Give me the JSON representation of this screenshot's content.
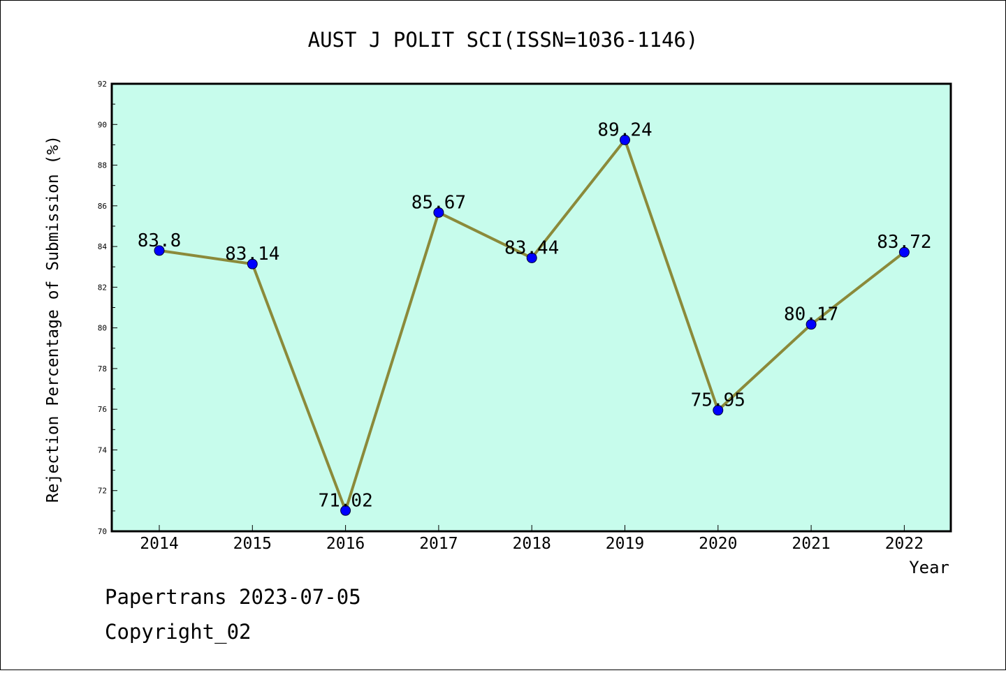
{
  "chart_data": {
    "type": "line",
    "title": "AUST J POLIT SCI(ISSN=1036-1146)",
    "xlabel": "Year",
    "ylabel": "Rejection Percentage of Submission (%)",
    "categories": [
      "2014",
      "2015",
      "2016",
      "2017",
      "2018",
      "2019",
      "2020",
      "2021",
      "2022"
    ],
    "values": [
      83.8,
      83.14,
      71.02,
      85.67,
      83.44,
      89.24,
      75.95,
      80.17,
      83.72
    ],
    "data_labels": [
      "83.8",
      "83.14",
      "71.02",
      "85.67",
      "83.44",
      "89.24",
      "75.95",
      "80.17",
      "83.72"
    ],
    "ylim": [
      70,
      92
    ],
    "yticks": [
      "70",
      "72",
      "74",
      "76",
      "78",
      "80",
      "82",
      "84",
      "86",
      "88",
      "90",
      "92"
    ],
    "grid": false,
    "colors": {
      "plot_background": "#c7fcec",
      "line": "#8b8a3a",
      "marker": "#0000ff"
    }
  },
  "footer": {
    "line1": "Papertrans 2023-07-05",
    "line2": "Copyright_02"
  }
}
